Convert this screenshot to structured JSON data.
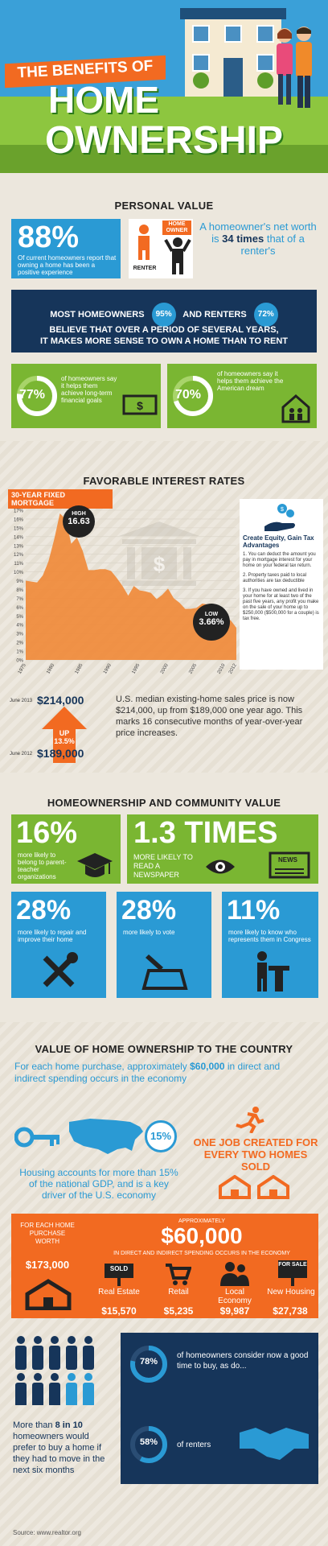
{
  "hero": {
    "title_line1": "THE BENEFITS OF",
    "title_line2": "HOME",
    "title_line3": "OWNERSHIP"
  },
  "personal": {
    "header": "PERSONAL VALUE",
    "stat1_value": "88%",
    "stat1_text": "Of current homeowners report that owning a home has been a positive experience",
    "renter_label": "RENTER",
    "owner_label": "HOME OWNER",
    "networth_pre": "A homeowner's net worth is",
    "networth_bold": "34 times",
    "networth_post": "that of a renter's",
    "belief_line1a": "MOST HOMEOWNERS",
    "belief_pct1": "95%",
    "belief_line1b": "AND RENTERS",
    "belief_pct2": "72%",
    "belief_line2": "BELIEVE THAT OVER A PERIOD OF SEVERAL YEARS,",
    "belief_line3": "IT MAKES MORE SENSE TO OWN A HOME THAN TO RENT",
    "stat2_value": "77%",
    "stat2_text": "of homeowners say it helps them achieve long-term financial goals",
    "stat3_value": "70%",
    "stat3_text": "of homeowners say it helps them achieve the American dream"
  },
  "rates": {
    "header": "FAVORABLE INTEREST RATES",
    "tag": "30-YEAR FIXED MORTGAGE",
    "high_label": "HIGH",
    "high_value": "16.63",
    "low_label": "LOW",
    "low_value": "3.66%",
    "tax_title": "Create Equity, Gain Tax Advantages",
    "tax1": "1. You can deduct the amount you pay in mortgage interest for your home on your federal tax return.",
    "tax2": "2. Property taxes paid to local authorities are tax deductible",
    "tax3": "3. If you have owned and lived in your home for at least two of the past five years, any profit you make on the sale of your home up to $250,000 ($500,000 for a couple) is tax free.",
    "june2013_label": "June 2013",
    "june2013_value": "$214,000",
    "up_label": "UP",
    "up_value": "13.5%",
    "june2012_label": "June 2012",
    "june2012_value": "$189,000",
    "price_text": "U.S. median existing-home sales price is now $214,000, up from $189,000 one year ago. This marks 16 consecutive months of year-over-year price increases."
  },
  "chart_data": {
    "type": "area",
    "title": "30-YEAR FIXED MORTGAGE",
    "xlabel": "",
    "ylabel": "",
    "x": [
      1975,
      1976,
      1977,
      1978,
      1979,
      1980,
      1981,
      1982,
      1983,
      1984,
      1985,
      1986,
      1987,
      1988,
      1989,
      1990,
      1991,
      1992,
      1993,
      1994,
      1995,
      1996,
      1997,
      1998,
      1999,
      2000,
      2001,
      2002,
      2003,
      2004,
      2005,
      2006,
      2007,
      2008,
      2009,
      2010,
      2011,
      2012
    ],
    "values": [
      9.0,
      8.9,
      8.8,
      9.6,
      11.2,
      13.7,
      16.63,
      16.0,
      13.2,
      13.9,
      12.4,
      10.2,
      10.2,
      10.3,
      10.3,
      10.1,
      9.3,
      8.4,
      7.3,
      8.4,
      7.9,
      7.8,
      7.6,
      6.9,
      7.4,
      8.1,
      7.0,
      6.5,
      5.8,
      5.8,
      5.9,
      6.4,
      6.3,
      6.0,
      5.0,
      4.7,
      4.5,
      3.66
    ],
    "ylim": [
      0,
      17
    ],
    "yticks": [
      "17%",
      "16%",
      "15%",
      "14%",
      "13%",
      "12%",
      "11%",
      "10%",
      "9%",
      "8%",
      "7%",
      "6%",
      "5%",
      "4%",
      "3%",
      "2%",
      "1%",
      "0%"
    ],
    "xticks": [
      "1975",
      "1980",
      "1985",
      "1990",
      "1995",
      "2000",
      "2005",
      "2010",
      "2012"
    ]
  },
  "community": {
    "header": "HOMEOWNERSHIP AND COMMUNITY VALUE",
    "c1_value": "16%",
    "c1_text": "more likely to belong to parent-teacher organizations",
    "c2_value": "1.3 TIMES",
    "c2_text": "MORE LIKELY TO READ A NEWSPAPER",
    "news_label": "NEWS",
    "c3_value": "28%",
    "c3_text": "more likely to repair and improve their home",
    "c4_value": "28%",
    "c4_text": "more likely to vote",
    "c5_value": "11%",
    "c5_text": "more likely to know who represents them in Congress"
  },
  "country": {
    "header": "VALUE OF HOME OWNERSHIP TO THE COUNTRY",
    "intro_pre": "For each home purchase, approximately",
    "intro_bold": "$60,000",
    "intro_post": "in direct and indirect spending occurs in the economy",
    "gdp_pct": "15%",
    "gdp_text": "Housing accounts for more than 15% of the national GDP, and is a key driver of the U.S. economy",
    "jobs_text": "ONE JOB CREATED FOR EVERY TWO HOMES SOLD",
    "purchase_label": "FOR EACH HOME PURCHASE WORTH",
    "purchase_value": "$173,000",
    "approx": "APPROXIMATELY",
    "spend_value": "$60,000",
    "spend_text": "IN DIRECT AND INDIRECT SPENDING OCCURS IN THE ECONOMY",
    "sold_label": "SOLD",
    "forsale_label": "FOR SALE",
    "cats": [
      {
        "label": "Real Estate",
        "value": "$15,570"
      },
      {
        "label": "Retail",
        "value": "$5,235"
      },
      {
        "label": "Local Economy",
        "value": "$9,987"
      },
      {
        "label": "New Housing",
        "value": "$27,738"
      }
    ],
    "prefer_pre": "More than",
    "prefer_bold": "8 in 10",
    "prefer_post": "homeowners would prefer to buy a home if they had to move in the next six months",
    "good_pct": "78%",
    "good_text": "of homeowners consider now a good time to buy, as do...",
    "renters_pct": "58%",
    "renters_text": "of renters",
    "source": "Source: www.realtor.org"
  },
  "colors": {
    "blue": "#2a9ad4",
    "green": "#7ab632",
    "navy": "#16355a",
    "orange": "#f26a21",
    "chart_fill": "#f08a3a"
  }
}
